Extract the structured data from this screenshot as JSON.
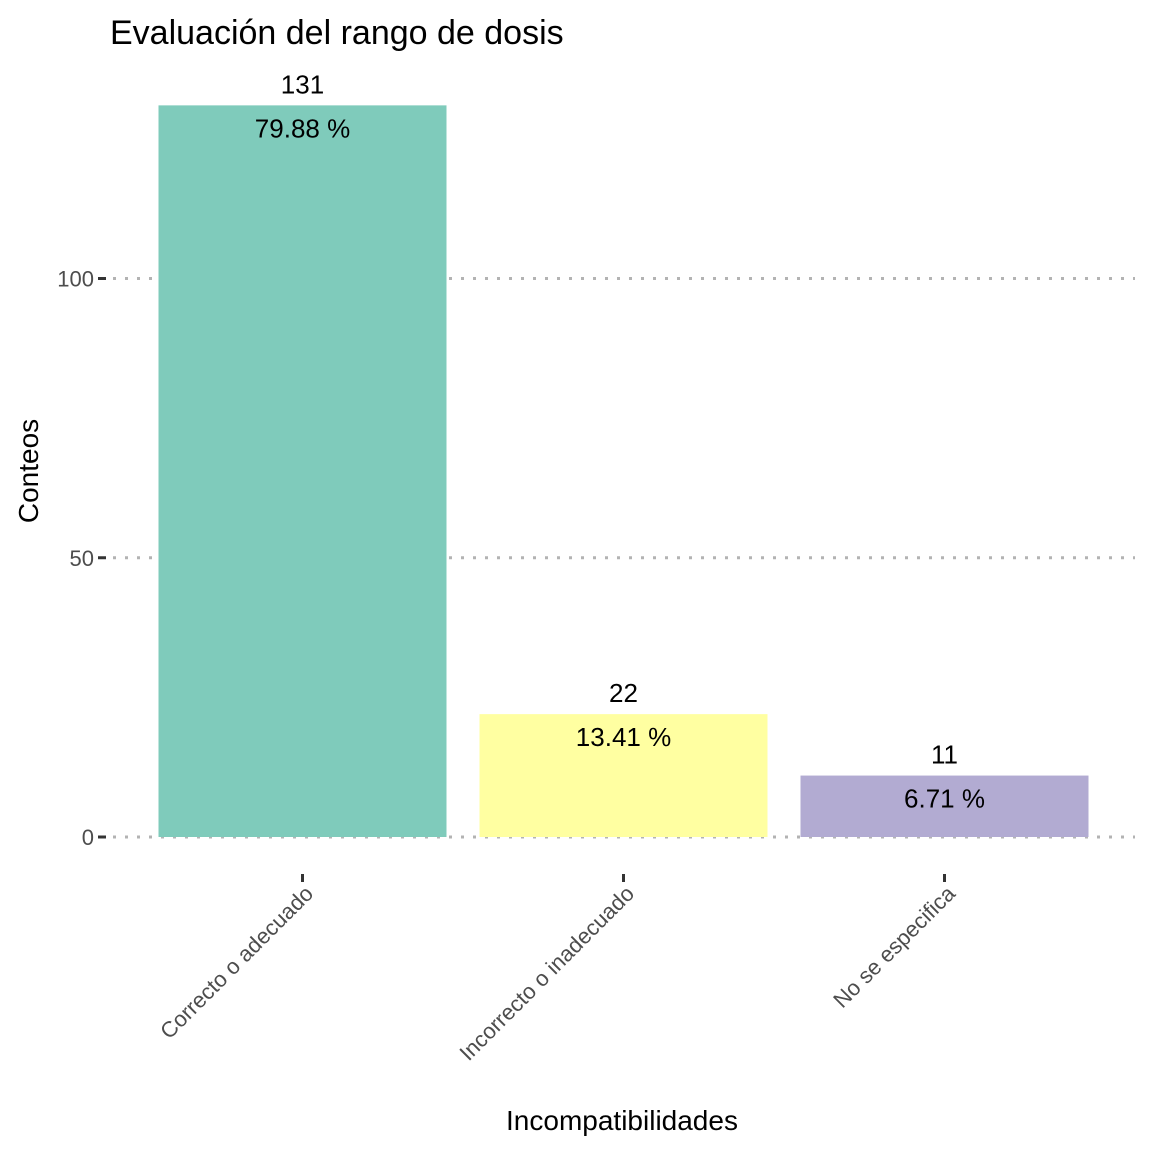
{
  "chart_data": {
    "type": "bar",
    "title": "Evaluación del rango de dosis",
    "xlabel": "Incompatibilidades",
    "ylabel": "Conteos",
    "categories": [
      "Correcto o adecuado",
      "Incorrecto o inadecuado",
      "No se especifica"
    ],
    "values": [
      131,
      22,
      11
    ],
    "percent_labels": [
      "79.88 %",
      "13.41 %",
      "6.71 %"
    ],
    "colors": [
      "#7fcbbb",
      "#ffffa1",
      "#b2abd2"
    ],
    "ylim": [
      0,
      131
    ],
    "yticks": [
      0,
      50,
      100
    ],
    "grid": "horizontal dotted",
    "legend": "none"
  }
}
